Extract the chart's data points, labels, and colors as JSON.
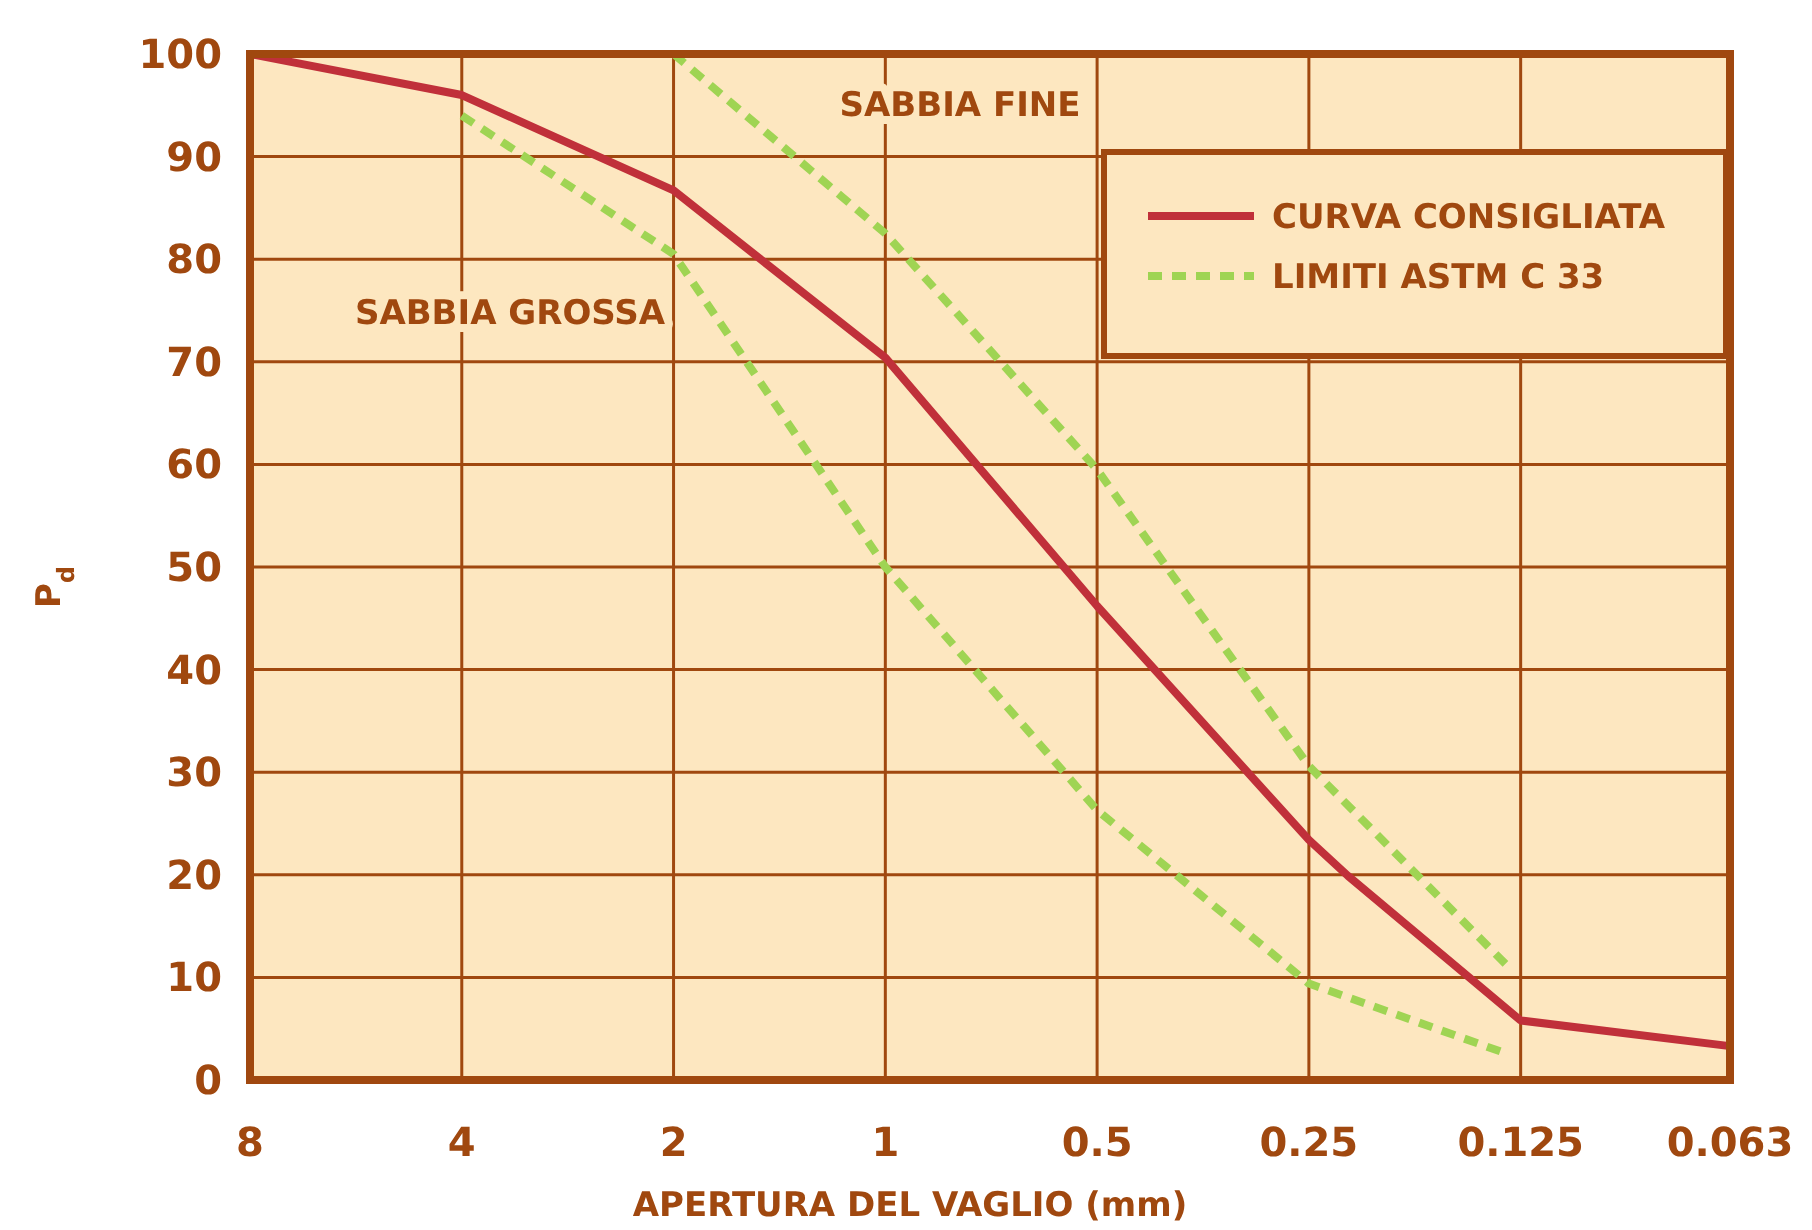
{
  "chart_data": {
    "type": "line",
    "xlabel": "APERTURA DEL VAGLIO (mm)",
    "ylabel": "P$_{d}$",
    "log": "x",
    "xlim": [
      8,
      0.063
    ],
    "xticks": [
      8,
      4,
      2,
      1,
      0.5,
      0.25,
      0.125,
      0.063
    ],
    "ylim": [
      0,
      100
    ],
    "yticks": [
      0,
      10,
      20,
      30,
      40,
      50,
      60,
      70,
      80,
      90,
      100
    ],
    "grid": true,
    "legend": "top right",
    "annotations": [
      "SABBIA FINE",
      "SABBIA GROSSA"
    ],
    "series": [
      {
        "name": "CURVA CONSIGLIATA",
        "color": "#c0303a",
        "line_style": "solid",
        "x": [
          8,
          4,
          2,
          1,
          0.5,
          0.25,
          0.22,
          0.125,
          0.063
        ],
        "values": [
          100,
          96,
          86.7,
          70.4,
          46.2,
          23.4,
          19.9,
          5.8,
          3.3
        ]
      },
      {
        "name": "LIMITI ASTM C 33",
        "color": "#9fd453",
        "line_style": "dashed",
        "x": [
          2,
          1,
          0.5,
          0.25,
          0.13
        ],
        "values": [
          100,
          82.5,
          59.5,
          30.6,
          11
        ]
      },
      {
        "color": "#9fd453",
        "line_style": "dashed",
        "x": [
          4,
          2,
          1,
          0.5,
          0.25,
          0.13
        ],
        "values": [
          94,
          80.5,
          50,
          26.3,
          9.4,
          2.5
        ]
      }
    ]
  }
}
